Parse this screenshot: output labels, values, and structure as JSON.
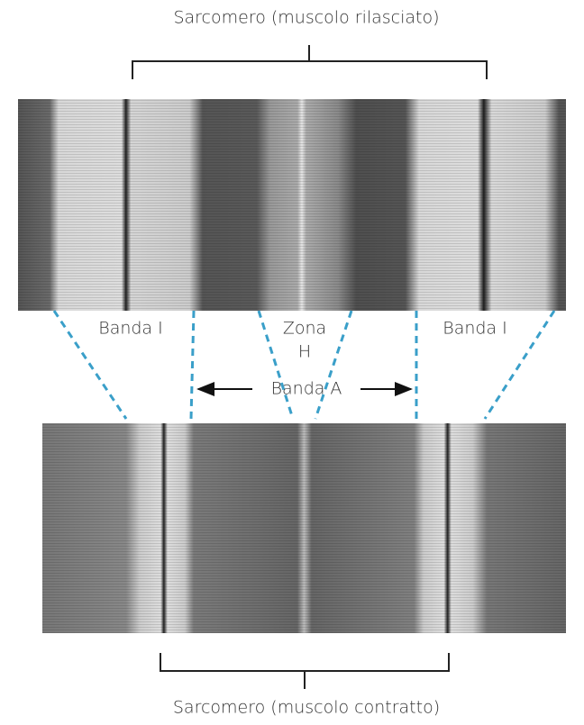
{
  "top_caption": "Sarcomero (muscolo rilasciato)",
  "bottom_caption": "Sarcomero (muscolo contratto)",
  "labels": {
    "banda_i_left": "Banda I",
    "zona_h": [
      "Zona",
      "H"
    ],
    "banda_a": "Banda A",
    "banda_i_right": "Banda I"
  }
}
